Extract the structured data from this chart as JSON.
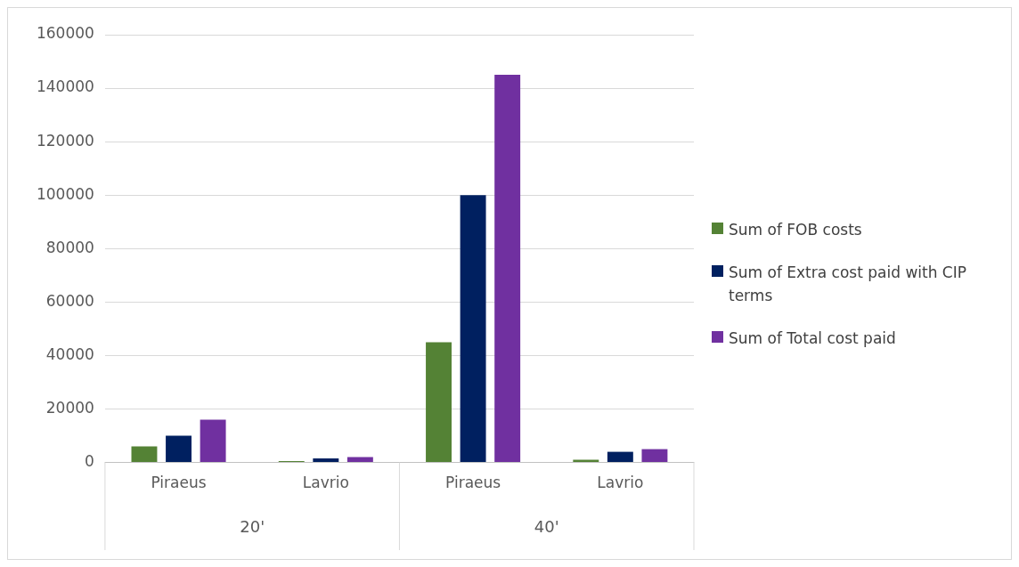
{
  "chart_data": {
    "type": "bar",
    "categories": [
      "Piraeus",
      "Lavrio",
      "Piraeus",
      "Lavrio"
    ],
    "series": [
      {
        "name": "Sum of FOB costs",
        "color": "#548235",
        "values": [
          6000,
          500,
          45000,
          1000
        ]
      },
      {
        "name": "Sum of Extra cost paid with CIP terms",
        "color": "#002060",
        "values": [
          10000,
          1500,
          100000,
          4000
        ]
      },
      {
        "name": "Sum of Total cost paid",
        "color": "#7030a0",
        "values": [
          16000,
          2000,
          145000,
          5000
        ]
      }
    ],
    "ylim": [
      0,
      160000
    ],
    "yticks": [
      0,
      20000,
      40000,
      60000,
      80000,
      100000,
      120000,
      140000,
      160000
    ],
    "grid": "y",
    "legend": "right",
    "annotations": [
      "20'",
      "40'"
    ]
  }
}
